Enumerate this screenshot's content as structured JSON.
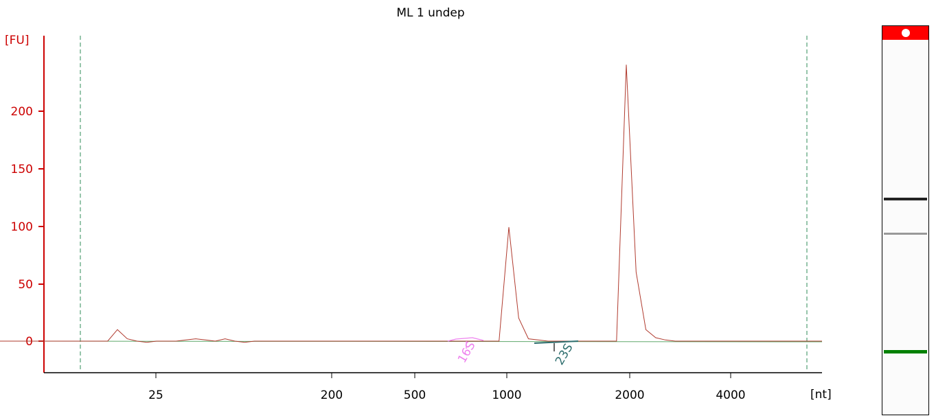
{
  "chart_data": {
    "type": "line",
    "title": "ML 1 undep",
    "ylabel": "[FU]",
    "xlabel": "[nt]",
    "ylim": [
      -27,
      262
    ],
    "yticks": [
      "0",
      "50",
      "100",
      "150",
      "200"
    ],
    "xticks": [
      "25",
      "200",
      "500",
      "1000",
      "2000",
      "4000"
    ],
    "annotations": [
      "16S",
      "23S"
    ],
    "series": [
      {
        "color": "#b03a2e",
        "x": [
          0,
          1,
          2,
          3,
          4,
          5,
          6,
          7,
          8,
          9,
          10,
          11,
          12,
          13,
          14,
          15,
          16,
          17,
          18,
          19,
          20,
          21,
          22,
          23,
          24,
          25,
          26,
          27,
          28,
          29,
          30,
          31,
          32,
          33,
          34,
          35,
          36,
          37,
          38,
          39,
          40,
          41,
          42,
          43,
          44,
          45,
          46,
          47,
          48,
          49,
          50,
          51,
          52,
          53,
          54,
          55,
          56,
          57,
          58,
          59,
          60,
          61,
          62,
          63,
          64,
          65,
          66,
          67,
          68,
          69,
          70,
          71,
          72,
          73,
          74,
          75,
          76,
          77,
          78,
          79,
          80,
          81,
          82,
          83,
          84
        ],
        "values": [
          0,
          0,
          0,
          0,
          0,
          0,
          0,
          0,
          0,
          0,
          0,
          0,
          10,
          2,
          0,
          -1,
          0,
          0,
          0,
          1,
          2,
          1,
          0,
          2,
          0,
          -1,
          0,
          0,
          0,
          0,
          0,
          0,
          0,
          0,
          0,
          0,
          0,
          0,
          0,
          0,
          0,
          0,
          0,
          0,
          0,
          0,
          0,
          0,
          0,
          0,
          0,
          0,
          99,
          20,
          2,
          1,
          0,
          0,
          0,
          0,
          0,
          0,
          0,
          0,
          240,
          60,
          10,
          3,
          1,
          0,
          0,
          0,
          0,
          0,
          0,
          0,
          0,
          0,
          0,
          0,
          0,
          0,
          0,
          0,
          0
        ]
      }
    ]
  },
  "gel": {
    "marker_color": "#ff0000",
    "bands": [
      "#222222",
      "#999999",
      "#008000"
    ]
  }
}
